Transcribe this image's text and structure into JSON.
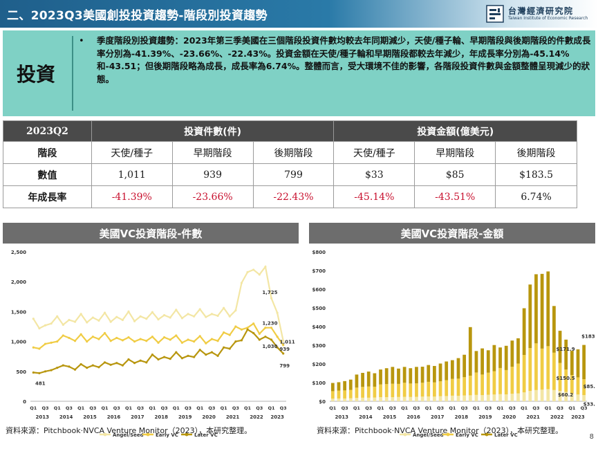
{
  "header": {
    "title": "二、2023Q3美國創投投資趨勢-階段別投資趨勢",
    "logo_cn": "台灣經濟研究院",
    "logo_en": "Taiwan Institute of Economic Research"
  },
  "summary": {
    "label": "投資",
    "bullet": "•",
    "text": "季度階段別投資趨勢：2023年第三季美國在三個階段投資件數均較去年同期減少，天使/種子輪、早期階段與後期階段的件數成長率分別為-41.39%、-23.66%、-22.43%。投資金額在天使/種子輪和早期階段都較去年減少，年成長率分別為-45.14%和-43.51；但後期階段略為成長，成長率為6.74%。整體而言，受大環境不佳的影響，各階段投資件數與金額整體呈現減少的狀態。"
  },
  "table": {
    "corner": "2023Q2",
    "group_count": "投資件數(件)",
    "group_amount": "投資金額(億美元)",
    "row_stage": "階段",
    "stages": [
      "天使/種子",
      "早期階段",
      "後期階段",
      "天使/種子",
      "早期階段",
      "後期階段"
    ],
    "row_value": "數值",
    "values": [
      "1,011",
      "939",
      "799",
      "$33",
      "$85",
      "$183.5"
    ],
    "row_growth": "年成長率",
    "growth": [
      "-41.39%",
      "-23.66%",
      "-22.43%",
      "-45.14%",
      "-43.51%",
      "6.74%"
    ]
  },
  "colors": {
    "angel": "#f3e6a4",
    "early": "#f0cc44",
    "later": "#b8960e",
    "negative": "#c8102e"
  },
  "chart_data": [
    {
      "type": "line",
      "title": "美國VC投資階段-件數",
      "ylim": [
        0,
        2500
      ],
      "yticks": [
        "0",
        "500",
        "1,000",
        "1,500",
        "2,000",
        "2,500"
      ],
      "quarter_labels": [
        "Q1",
        "Q3"
      ],
      "years": [
        "2013",
        "2014",
        "2015",
        "2016",
        "2017",
        "2018",
        "2019",
        "2020",
        "2021",
        "2022",
        "2023"
      ],
      "x_count": 43,
      "annotations": [
        "481",
        "1,725",
        "1,230",
        "1,011",
        "1,030",
        "939",
        "799"
      ],
      "legend": [
        "Angel/Seed",
        "Early VC",
        "Later VC"
      ],
      "legend_position": "bottom",
      "grid": false,
      "series": [
        {
          "name": "Angel/Seed",
          "values": [
            1380,
            1220,
            1270,
            1300,
            1420,
            1280,
            1360,
            1330,
            1460,
            1320,
            1400,
            1350,
            1480,
            1330,
            1410,
            1360,
            1500,
            1340,
            1420,
            1380,
            1490,
            1370,
            1440,
            1400,
            1530,
            1390,
            1460,
            1420,
            1540,
            1410,
            1460,
            1430,
            1560,
            1420,
            1520,
            1980,
            2160,
            2200,
            2120,
            2250,
            1725,
            1480,
            1011
          ]
        },
        {
          "name": "Early VC",
          "values": [
            900,
            880,
            960,
            980,
            1000,
            1100,
            1060,
            1010,
            1120,
            1000,
            1080,
            1040,
            1140,
            1010,
            1060,
            1020,
            1070,
            1000,
            1040,
            1010,
            1080,
            980,
            1070,
            1030,
            1100,
            980,
            1030,
            1000,
            1090,
            970,
            1040,
            1010,
            1150,
            1110,
            1250,
            1200,
            1230,
            1300,
            1130,
            1230,
            1230,
            1080,
            939
          ]
        },
        {
          "name": "Later VC",
          "values": [
            481,
            470,
            500,
            520,
            560,
            600,
            580,
            530,
            620,
            560,
            600,
            570,
            650,
            610,
            640,
            600,
            700,
            640,
            680,
            650,
            780,
            700,
            740,
            710,
            820,
            720,
            760,
            740,
            860,
            780,
            820,
            760,
            900,
            880,
            1000,
            1020,
            1200,
            1140,
            1030,
            1080,
            1030,
            900,
            799
          ]
        }
      ]
    },
    {
      "type": "bar",
      "stacked": true,
      "title": "美國VC投資階段-金額",
      "ylim": [
        0,
        800
      ],
      "yticks": [
        "$0",
        "$100",
        "$200",
        "$300",
        "$400",
        "$500",
        "$600",
        "$700",
        "$800"
      ],
      "quarter_labels": [
        "Q1",
        "Q3"
      ],
      "years": [
        "2013",
        "2014",
        "2015",
        "2016",
        "2017",
        "2018",
        "2019",
        "2020",
        "2021",
        "2022",
        "2023"
      ],
      "x_count": 43,
      "annotations": [
        "$171.9",
        "$183.5",
        "$150.5",
        "$85.0",
        "$60.2",
        "$33.0"
      ],
      "legend": [
        "Angel/Seed",
        "Early VC",
        "Later VC"
      ],
      "legend_position": "bottom",
      "grid": false,
      "series": [
        {
          "name": "Angel/Seed",
          "values": [
            14,
            15,
            15,
            16,
            18,
            19,
            19,
            20,
            22,
            22,
            22,
            23,
            24,
            23,
            24,
            25,
            26,
            25,
            27,
            28,
            30,
            29,
            31,
            32,
            34,
            33,
            35,
            36,
            38,
            37,
            40,
            42,
            48,
            55,
            60,
            62,
            65,
            60,
            55,
            50,
            40,
            36,
            33
          ]
        },
        {
          "name": "Early VC",
          "values": [
            40,
            42,
            43,
            45,
            55,
            58,
            60,
            58,
            68,
            70,
            72,
            70,
            75,
            72,
            72,
            74,
            78,
            76,
            80,
            85,
            90,
            92,
            98,
            105,
            120,
            110,
            118,
            125,
            140,
            130,
            145,
            160,
            200,
            230,
            250,
            220,
            230,
            200,
            150.5,
            120,
            100,
            92,
            85
          ]
        },
        {
          "name": "Later VC",
          "values": [
            44,
            45,
            50,
            55,
            70,
            75,
            80,
            72,
            80,
            85,
            90,
            82,
            85,
            82,
            88,
            86,
            90,
            88,
            95,
            100,
            100,
            110,
            120,
            260,
            115,
            140,
            120,
            140,
            110,
            130,
            140,
            135,
            250,
            340,
            370,
            400,
            400,
            250,
            171.9,
            160,
            130,
            150,
            183.5
          ]
        }
      ]
    }
  ],
  "source_left": "資料來源：Pitchbook‧NVCA Venture Monitor（2023），本研究整理。",
  "source_right": "資料來源：Pitchbook‧NVCA Venture Monitor（2023），本研究整理。",
  "page_number": "8"
}
